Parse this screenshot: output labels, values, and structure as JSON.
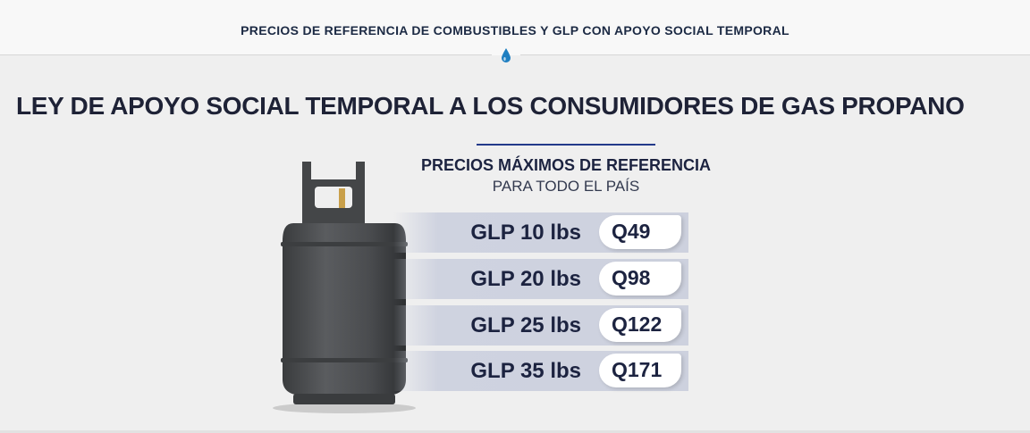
{
  "header": {
    "title": "PRECIOS DE REFERENCIA DE COMBUSTIBLES Y GLP CON APOYO SOCIAL TEMPORAL",
    "icon": "drop-icon",
    "accent": "#1f7fc1"
  },
  "main": {
    "title": "LEY DE APOYO SOCIAL TEMPORAL A LOS CONSUMIDORES DE GAS PROPANO",
    "subtitle": "PRECIOS MÁXIMOS DE REFERENCIA",
    "subtitle2": "PARA TODO EL PAÍS",
    "prices": [
      {
        "label": "GLP 10 lbs",
        "price": "Q49"
      },
      {
        "label": "GLP 20 lbs",
        "price": "Q98"
      },
      {
        "label": "GLP 25 lbs",
        "price": "Q122"
      },
      {
        "label": "GLP 35 lbs",
        "price": "Q171"
      }
    ]
  }
}
